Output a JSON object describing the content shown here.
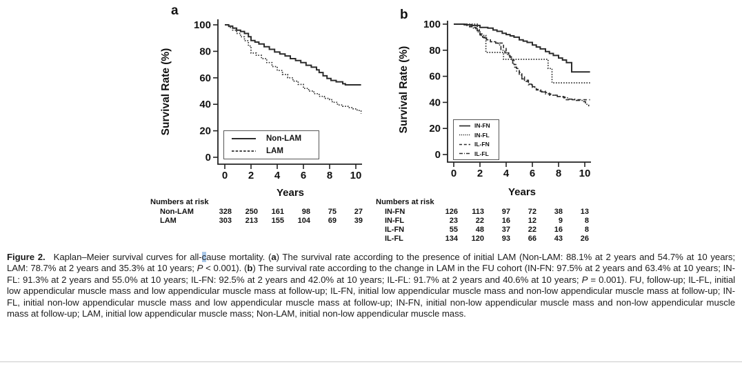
{
  "page": {
    "background": "#ffffff",
    "accent_highlight": "#aac9ea",
    "line_color": "#2b2b2b"
  },
  "caption": {
    "label": "Figure 2.",
    "s_intro": "Kaplan–Meier survival curves for all-",
    "s_cursor": "c",
    "s_after": "ause mortality. (",
    "s_a": "a",
    "s_a_text": ") The survival rate according to the presence of initial LAM (Non-LAM: 88.1% at 2 years and 54.7% at 10 years; LAM: 78.7% at 2 years and 35.3% at 10 years; ",
    "s_p1": "P",
    "s_p1_rest": " < 0.001). (",
    "s_b": "b",
    "s_b_text": ") The survival rate according to the change in LAM in the FU cohort (IN-FN: 97.5% at 2 years and 63.4% at 10 years; IN-FL: 91.3% at 2 years and 55.0% at 10 years; IL-FN: 92.5% at 2 years and 42.0% at 10 years; IL-FL: 91.7% at 2 years and 40.6% at 10 years; ",
    "s_p2": "P",
    "s_p2_rest": " = 0.001). FU, follow-up; IL-FL, initial low appendicular muscle mass and low appendicular muscle mass at follow-up; IL-FN, initial low appendicular muscle mass and non-low appendicular muscle mass at follow-up; IN-FL, initial non-low appendicular muscle mass and low appendicular muscle mass at follow-up; IN-FN, initial non-low appendicular muscle mass and non-low appendicular muscle mass at follow-up; LAM, initial low appendicular muscle mass; Non-LAM, initial non-low appendicular muscle mass."
  },
  "chart_data": [
    {
      "type": "line",
      "subtype": "kaplan-meier-step",
      "panel_label": "a",
      "xlabel": "Years",
      "ylabel": "Survival Rate (%)",
      "xlim": [
        0,
        10.5
      ],
      "ylim": [
        0,
        105
      ],
      "xticks": [
        0,
        2,
        4,
        6,
        8,
        10
      ],
      "yticks": [
        0,
        20,
        40,
        60,
        80,
        100
      ],
      "grid": false,
      "legend_position": "lower-left",
      "series": [
        {
          "name": "Non-LAM",
          "line_style": "solid",
          "color": "#2b2b2b",
          "points": [
            [
              0,
              100
            ],
            [
              0.3,
              99
            ],
            [
              0.6,
              97.5
            ],
            [
              0.9,
              96
            ],
            [
              1.2,
              95
            ],
            [
              1.5,
              93.5
            ],
            [
              1.8,
              91
            ],
            [
              2,
              88.1
            ],
            [
              2.3,
              87
            ],
            [
              2.6,
              85.5
            ],
            [
              3,
              83.5
            ],
            [
              3.4,
              81.5
            ],
            [
              3.8,
              79.5
            ],
            [
              4.2,
              78
            ],
            [
              4.6,
              76.5
            ],
            [
              5,
              74.5
            ],
            [
              5.4,
              73
            ],
            [
              5.8,
              71.5
            ],
            [
              6.2,
              69.5
            ],
            [
              6.6,
              68
            ],
            [
              7,
              66
            ],
            [
              7.2,
              64
            ],
            [
              7.5,
              61.5
            ],
            [
              7.8,
              59.5
            ],
            [
              8.1,
              58
            ],
            [
              8.5,
              57
            ],
            [
              9,
              55.5
            ],
            [
              9.2,
              54.7
            ],
            [
              10.4,
              54.7
            ]
          ]
        },
        {
          "name": "LAM",
          "line_style": "dotted",
          "color": "#2b2b2b",
          "points": [
            [
              0,
              100
            ],
            [
              0.3,
              98
            ],
            [
              0.6,
              96
            ],
            [
              0.9,
              93.5
            ],
            [
              1.2,
              91
            ],
            [
              1.5,
              88
            ],
            [
              1.8,
              84
            ],
            [
              2,
              78.7
            ],
            [
              2.4,
              77
            ],
            [
              2.8,
              74.5
            ],
            [
              3.2,
              71.5
            ],
            [
              3.6,
              68.5
            ],
            [
              4,
              65.5
            ],
            [
              4.4,
              62.5
            ],
            [
              4.8,
              60
            ],
            [
              5.2,
              57.5
            ],
            [
              5.6,
              55
            ],
            [
              6,
              52
            ],
            [
              6.4,
              50
            ],
            [
              6.8,
              48
            ],
            [
              7.2,
              46
            ],
            [
              7.6,
              44.5
            ],
            [
              8,
              43.5
            ],
            [
              8.2,
              41.5
            ],
            [
              8.6,
              39.5
            ],
            [
              9,
              38.5
            ],
            [
              9.4,
              37.5
            ],
            [
              9.8,
              36.5
            ],
            [
              10.1,
              35.3
            ],
            [
              10.4,
              33
            ]
          ]
        }
      ],
      "numbers_at_risk": {
        "header": "Numbers at risk",
        "rows": [
          {
            "label": "Non-LAM",
            "values": [
              328,
              250,
              161,
              98,
              75,
              27
            ]
          },
          {
            "label": "LAM",
            "values": [
              303,
              213,
              155,
              104,
              69,
              39
            ]
          }
        ]
      }
    },
    {
      "type": "line",
      "subtype": "kaplan-meier-step",
      "panel_label": "b",
      "xlabel": "Years",
      "ylabel": "Survival Rate (%)",
      "xlim": [
        0,
        10.5
      ],
      "ylim": [
        0,
        105
      ],
      "xticks": [
        0,
        2,
        4,
        6,
        8,
        10
      ],
      "yticks": [
        0,
        20,
        40,
        60,
        80,
        100
      ],
      "grid": false,
      "legend_position": "lower-left",
      "series": [
        {
          "name": "IN-FN",
          "line_style": "solid",
          "color": "#2b2b2b",
          "points": [
            [
              0,
              100
            ],
            [
              0.8,
              99.5
            ],
            [
              1.4,
              99
            ],
            [
              2,
              97.5
            ],
            [
              2.6,
              97
            ],
            [
              3,
              95.5
            ],
            [
              3.3,
              94.5
            ],
            [
              3.7,
              93
            ],
            [
              4,
              92
            ],
            [
              4.3,
              91
            ],
            [
              4.6,
              90
            ],
            [
              5,
              88
            ],
            [
              5.3,
              87
            ],
            [
              5.6,
              86
            ],
            [
              6,
              84
            ],
            [
              6.3,
              82.5
            ],
            [
              6.6,
              81
            ],
            [
              7,
              79
            ],
            [
              7.3,
              77.5
            ],
            [
              7.6,
              76
            ],
            [
              8,
              74
            ],
            [
              8.3,
              72.5
            ],
            [
              8.6,
              70.5
            ],
            [
              9,
              63.4
            ],
            [
              10.4,
              63.4
            ]
          ]
        },
        {
          "name": "IN-FL",
          "line_style": "dotted",
          "color": "#2b2b2b",
          "points": [
            [
              0,
              100
            ],
            [
              1.6,
              100
            ],
            [
              1.8,
              95.7
            ],
            [
              2,
              91.3
            ],
            [
              2.45,
              78.3
            ],
            [
              3.8,
              73
            ],
            [
              7.2,
              66
            ],
            [
              7.5,
              55
            ],
            [
              10.4,
              55
            ]
          ]
        },
        {
          "name": "IL-FN",
          "line_style": "dashed",
          "color": "#2b2b2b",
          "points": [
            [
              0,
              100
            ],
            [
              1,
              99
            ],
            [
              1.4,
              97.5
            ],
            [
              1.7,
              95
            ],
            [
              2,
              92.5
            ],
            [
              2.2,
              90
            ],
            [
              2.5,
              88
            ],
            [
              2.8,
              86.5
            ],
            [
              3.2,
              85.5
            ],
            [
              3.8,
              82
            ],
            [
              4,
              78
            ],
            [
              4.2,
              75
            ],
            [
              4.4,
              72.5
            ],
            [
              4.6,
              69
            ],
            [
              4.8,
              66
            ],
            [
              5,
              63
            ],
            [
              5.2,
              59.5
            ],
            [
              5.4,
              57
            ],
            [
              5.7,
              54
            ],
            [
              6,
              52
            ],
            [
              6.3,
              50
            ],
            [
              6.6,
              48.5
            ],
            [
              7,
              47.5
            ],
            [
              7.3,
              45.5
            ],
            [
              7.8,
              44.5
            ],
            [
              8.3,
              44
            ],
            [
              8.5,
              42
            ],
            [
              10.4,
              42
            ]
          ]
        },
        {
          "name": "IL-FL",
          "line_style": "dashdot",
          "color": "#2b2b2b",
          "points": [
            [
              0,
              100
            ],
            [
              0.9,
              99.5
            ],
            [
              1.2,
              98
            ],
            [
              1.5,
              96.5
            ],
            [
              1.8,
              94
            ],
            [
              2,
              91.7
            ],
            [
              2.2,
              89.5
            ],
            [
              2.5,
              88
            ],
            [
              2.8,
              86.5
            ],
            [
              3.1,
              85.5
            ],
            [
              3.4,
              84
            ],
            [
              3.6,
              80
            ],
            [
              3.9,
              78
            ],
            [
              4.1,
              76
            ],
            [
              4.3,
              73.5
            ],
            [
              4.5,
              70
            ],
            [
              4.65,
              67
            ],
            [
              4.8,
              64
            ],
            [
              5,
              61
            ],
            [
              5.2,
              58
            ],
            [
              5.4,
              56
            ],
            [
              5.7,
              53.5
            ],
            [
              6,
              51.5
            ],
            [
              6.3,
              49.5
            ],
            [
              6.7,
              48
            ],
            [
              7,
              46.5
            ],
            [
              7.4,
              45.5
            ],
            [
              7.9,
              44.5
            ],
            [
              8.4,
              43.5
            ],
            [
              8.8,
              42.5
            ],
            [
              9.3,
              41.5
            ],
            [
              9.8,
              40.6
            ],
            [
              10.05,
              38.5
            ],
            [
              10.3,
              37
            ]
          ]
        }
      ],
      "numbers_at_risk": {
        "header": "Numbers at risk",
        "rows": [
          {
            "label": "IN-FN",
            "values": [
              126,
              113,
              97,
              72,
              38,
              13
            ]
          },
          {
            "label": "IN-FL",
            "values": [
              23,
              22,
              16,
              12,
              9,
              8
            ]
          },
          {
            "label": "IL-FN",
            "values": [
              55,
              48,
              37,
              22,
              16,
              8
            ]
          },
          {
            "label": "IL-FL",
            "values": [
              134,
              120,
              93,
              66,
              43,
              26
            ]
          }
        ]
      }
    }
  ]
}
